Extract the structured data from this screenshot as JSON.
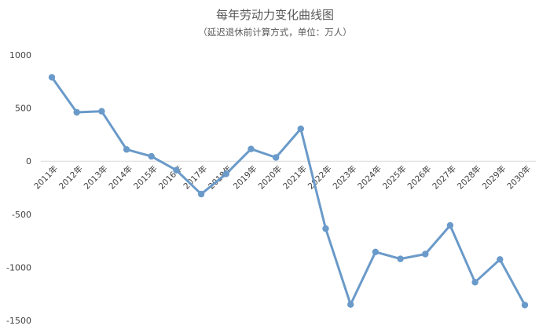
{
  "chart_data": {
    "type": "line",
    "title": "每年劳动力变化曲线图",
    "subtitle": "（延迟退休前计算方式，单位：万人）",
    "categories": [
      "2011年",
      "2012年",
      "2013年",
      "2014年",
      "2015年",
      "2016年",
      "2017年",
      "2018年",
      "2019年",
      "2020年",
      "2021年",
      "2022年",
      "2023年",
      "2024年",
      "2025年",
      "2026年",
      "2027年",
      "2028年",
      "2029年",
      "2030年"
    ],
    "series": [
      {
        "values": [
          790,
          460,
          470,
          110,
          45,
          -85,
          -310,
          -120,
          115,
          35,
          305,
          -635,
          -1350,
          -855,
          -920,
          -875,
          -605,
          -1140,
          -925,
          -1355
        ]
      }
    ],
    "yticks": [
      1000,
      500,
      0,
      -500,
      -1000,
      -1500
    ],
    "yticks_labels": [
      "1000",
      "500",
      "0",
      "-500",
      "-1000",
      "-1500"
    ],
    "ylim": [
      -1500,
      1000
    ],
    "grid": false,
    "line_color": "#6a9ac9",
    "axis_color": "#d9d9d9"
  }
}
